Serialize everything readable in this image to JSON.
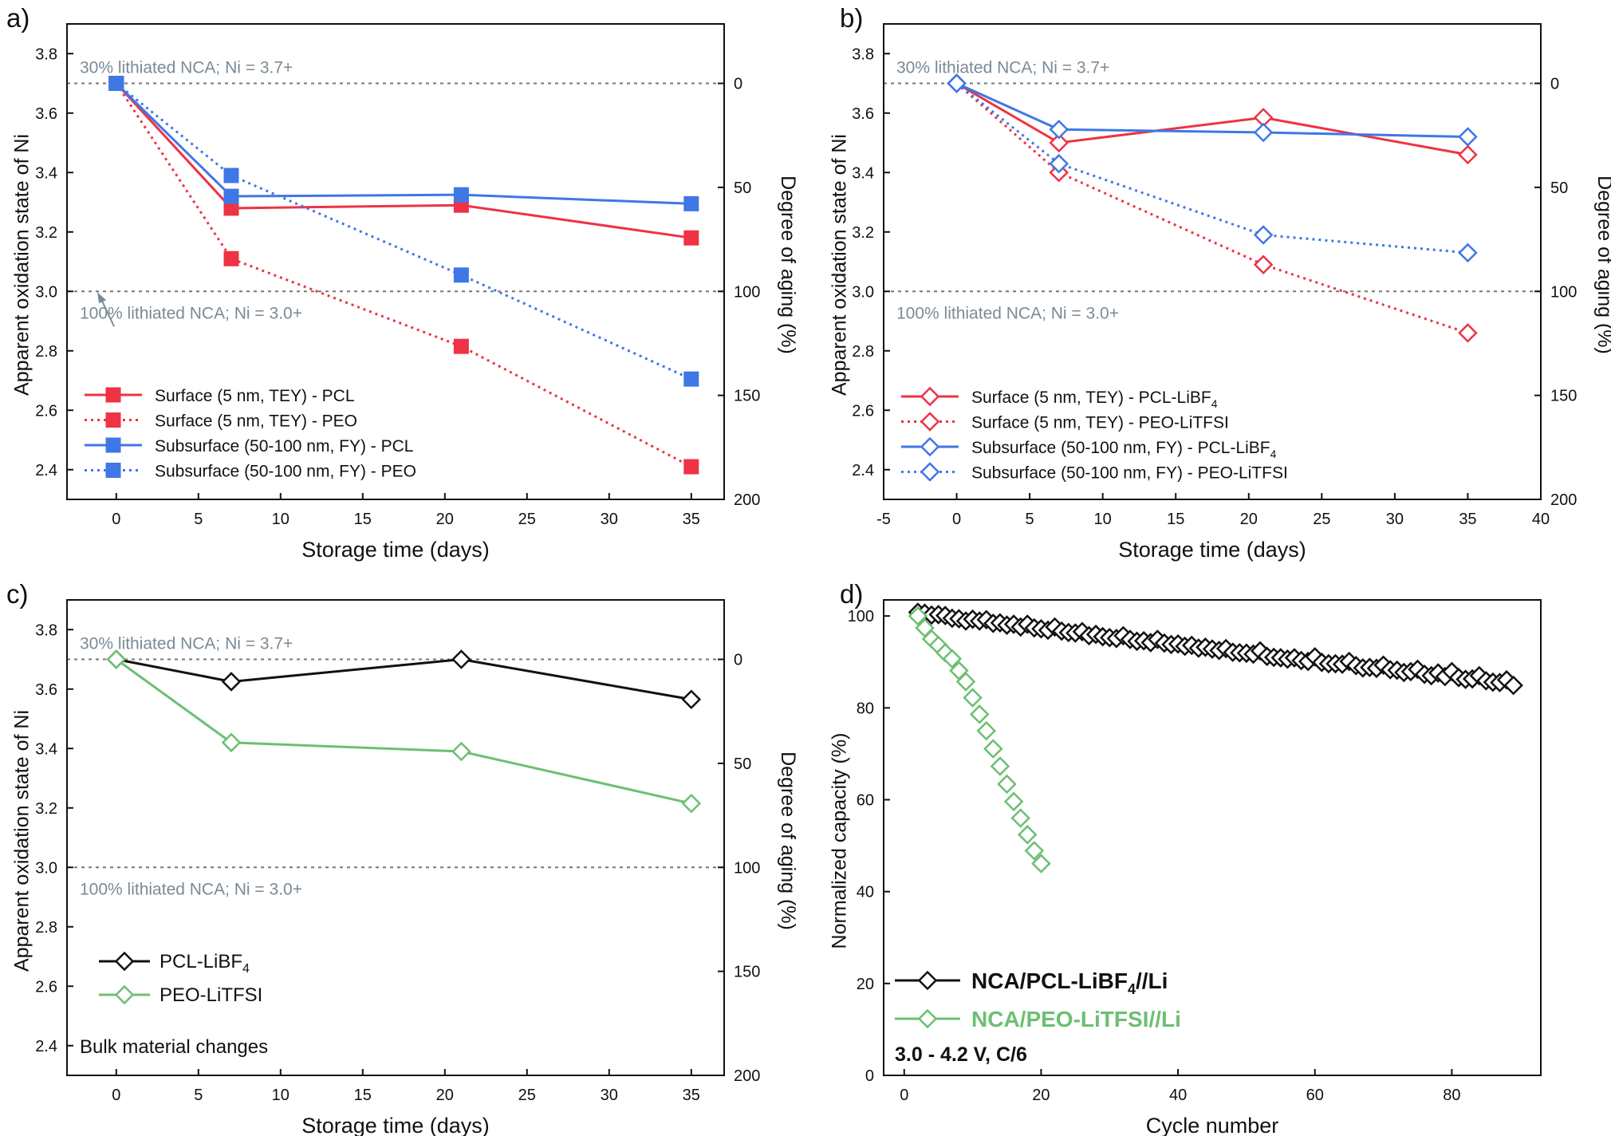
{
  "figure": {
    "colors": {
      "red": "#ee3344",
      "blue": "#3f77e6",
      "black": "#111111",
      "green": "#6cbf72",
      "refline": "#777777",
      "reftext": "#7a8a96"
    }
  },
  "chart_data": [
    {
      "panel": "a)",
      "type": "line",
      "xlabel": "Storage time (days)",
      "ylabel": "Apparent oxidation state of Ni",
      "ylabel_right": "Degree of aging (%)",
      "xlim": [
        -3,
        37
      ],
      "ylim": [
        2.3,
        3.9
      ],
      "xticks": [
        0,
        5,
        10,
        15,
        20,
        25,
        30,
        35
      ],
      "yticks": [
        2.4,
        2.6,
        2.8,
        3.0,
        3.2,
        3.4,
        3.6,
        3.8
      ],
      "right_ticks": [
        0,
        50,
        100,
        150,
        200
      ],
      "marker": "square",
      "ref_lines": [
        {
          "y": 3.7,
          "label": "30% lithiated NCA; Ni = 3.7+"
        },
        {
          "y": 3.0,
          "label": "100% lithiated NCA; Ni = 3.0+"
        }
      ],
      "series": [
        {
          "name": "Surface (5 nm, TEY) - PCL",
          "color": "red",
          "dash": false,
          "x": [
            0,
            7,
            21,
            35
          ],
          "y": [
            3.7,
            3.28,
            3.29,
            3.18
          ]
        },
        {
          "name": "Surface (5 nm, TEY) - PEO",
          "color": "red",
          "dash": true,
          "x": [
            0,
            7,
            21,
            35
          ],
          "y": [
            3.7,
            3.11,
            2.815,
            2.41
          ]
        },
        {
          "name": "Subsurface (50-100 nm, FY) - PCL",
          "color": "blue",
          "dash": false,
          "x": [
            0,
            7,
            21,
            35
          ],
          "y": [
            3.7,
            3.32,
            3.325,
            3.295
          ]
        },
        {
          "name": "Subsurface (50-100 nm, FY) - PEO",
          "color": "blue",
          "dash": true,
          "x": [
            0,
            7,
            21,
            35
          ],
          "y": [
            3.7,
            3.39,
            3.055,
            2.705
          ]
        }
      ]
    },
    {
      "panel": "b)",
      "type": "line",
      "xlabel": "Storage time (days)",
      "ylabel": "Apparent oxidation state of Ni",
      "ylabel_right": "Degree of aging (%)",
      "xlim": [
        -5,
        40
      ],
      "ylim": [
        2.3,
        3.9
      ],
      "xticks": [
        -5,
        0,
        5,
        10,
        15,
        20,
        25,
        30,
        35,
        40
      ],
      "yticks": [
        2.4,
        2.6,
        2.8,
        3.0,
        3.2,
        3.4,
        3.6,
        3.8
      ],
      "right_ticks": [
        0,
        50,
        100,
        150,
        200
      ],
      "marker": "diamond",
      "ref_lines": [
        {
          "y": 3.7,
          "label": "30% lithiated NCA; Ni = 3.7+"
        },
        {
          "y": 3.0,
          "label": "100% lithiated NCA; Ni = 3.0+"
        }
      ],
      "series": [
        {
          "name": "Surface (5 nm, TEY) - PCL-LiBF",
          "subscript": "4",
          "color": "red",
          "dash": false,
          "x": [
            0,
            7,
            21,
            35
          ],
          "y": [
            3.7,
            3.5,
            3.585,
            3.46
          ]
        },
        {
          "name": "Surface (5 nm, TEY) - PEO-LiTFSI",
          "color": "red",
          "dash": true,
          "x": [
            0,
            7,
            21,
            35
          ],
          "y": [
            3.7,
            3.4,
            3.09,
            2.86
          ]
        },
        {
          "name": "Subsurface (50-100 nm, FY) - PCL-LiBF",
          "subscript": "4",
          "color": "blue",
          "dash": false,
          "x": [
            0,
            7,
            21,
            35
          ],
          "y": [
            3.7,
            3.545,
            3.535,
            3.52
          ]
        },
        {
          "name": "Subsurface (50-100 nm, FY) - PEO-LiTFSI",
          "color": "blue",
          "dash": true,
          "x": [
            0,
            7,
            21,
            35
          ],
          "y": [
            3.7,
            3.43,
            3.19,
            3.13
          ]
        }
      ]
    },
    {
      "panel": "c)",
      "type": "line",
      "xlabel": "Storage time (days)",
      "ylabel": "Apparent oxidation state of Ni",
      "ylabel_right": "Degree of aging (%)",
      "xlim": [
        -3,
        37
      ],
      "ylim": [
        2.3,
        3.9
      ],
      "xticks": [
        0,
        5,
        10,
        15,
        20,
        25,
        30,
        35
      ],
      "yticks": [
        2.4,
        2.6,
        2.8,
        3.0,
        3.2,
        3.4,
        3.6,
        3.8
      ],
      "right_ticks": [
        0,
        50,
        100,
        150,
        200
      ],
      "marker": "diamond",
      "annotation": "Bulk material changes",
      "ref_lines": [
        {
          "y": 3.7,
          "label": "30% lithiated NCA; Ni = 3.7+"
        },
        {
          "y": 3.0,
          "label": "100% lithiated NCA; Ni = 3.0+"
        }
      ],
      "series": [
        {
          "name": "PCL-LiBF",
          "subscript": "4",
          "color": "black",
          "dash": false,
          "x": [
            0,
            7,
            21,
            35
          ],
          "y": [
            3.7,
            3.625,
            3.7,
            3.565
          ]
        },
        {
          "name": "PEO-LiTFSI",
          "color": "green",
          "dash": false,
          "x": [
            0,
            7,
            21,
            35
          ],
          "y": [
            3.7,
            3.42,
            3.39,
            3.215
          ]
        }
      ]
    },
    {
      "panel": "d)",
      "type": "scatter",
      "xlabel": "Cycle number",
      "ylabel": "Normalized capacity (%)",
      "xlim": [
        -3,
        93
      ],
      "ylim": [
        0,
        103.5
      ],
      "xticks": [
        0,
        20,
        40,
        60,
        80
      ],
      "yticks": [
        0,
        20,
        40,
        60,
        80,
        100
      ],
      "marker": "diamond",
      "annotation": "3.0 - 4.2 V, C/6",
      "series": [
        {
          "name": "NCA/PCL-LiBF",
          "subscript": "4",
          "suffix": "//Li",
          "color": "black",
          "x": [
            2,
            3,
            4,
            5,
            6,
            7,
            8,
            9,
            10,
            11,
            12,
            13,
            14,
            15,
            16,
            17,
            18,
            19,
            20,
            21,
            22,
            23,
            24,
            25,
            26,
            27,
            28,
            29,
            30,
            31,
            32,
            33,
            34,
            35,
            36,
            37,
            38,
            39,
            40,
            41,
            42,
            43,
            44,
            45,
            46,
            47,
            48,
            49,
            50,
            51,
            52,
            53,
            54,
            55,
            56,
            57,
            58,
            59,
            60,
            61,
            62,
            63,
            64,
            65,
            66,
            67,
            68,
            69,
            70,
            71,
            72,
            73,
            74,
            75,
            76,
            77,
            78,
            79,
            80,
            81,
            82,
            83,
            84,
            85,
            86,
            87,
            88,
            89
          ],
          "y": [
            100.8,
            100.6,
            100.2,
            100.3,
            100.1,
            99.5,
            99.4,
            98.9,
            99.3,
            98.9,
            99.2,
            98.4,
            98.5,
            98.0,
            98.2,
            97.6,
            98.2,
            97.4,
            97.2,
            96.9,
            97.6,
            96.7,
            96.4,
            96.3,
            96.6,
            95.7,
            96.0,
            95.5,
            95.3,
            95.1,
            95.7,
            94.9,
            94.5,
            94.6,
            94.2,
            94.9,
            94.1,
            93.8,
            93.9,
            93.4,
            93.6,
            93.0,
            93.2,
            92.8,
            92.5,
            92.9,
            92.1,
            92.0,
            91.9,
            91.7,
            92.4,
            91.2,
            91.0,
            90.9,
            90.6,
            90.9,
            90.3,
            90.1,
            91.1,
            89.9,
            89.6,
            89.6,
            89.5,
            90.1,
            89.2,
            88.7,
            88.8,
            88.6,
            89.3,
            88.3,
            88.2,
            87.7,
            87.9,
            88.4,
            87.3,
            87.0,
            87.6,
            86.8,
            87.9,
            86.6,
            86.2,
            86.3,
            87.0,
            85.9,
            85.6,
            85.5,
            86.1,
            84.9
          ]
        },
        {
          "name": "NCA/PEO-LiTFSI//Li",
          "color": "green",
          "x": [
            2,
            3,
            4,
            5,
            6,
            7,
            8,
            9,
            10,
            11,
            12,
            13,
            14,
            15,
            16,
            17,
            18,
            19,
            20
          ],
          "y": [
            100,
            97.4,
            95.0,
            93.6,
            92.0,
            90.7,
            88.1,
            85.7,
            82.2,
            78.6,
            75.0,
            71.1,
            67.3,
            63.4,
            59.6,
            56.0,
            52.4,
            48.9,
            46.1
          ]
        }
      ]
    }
  ]
}
